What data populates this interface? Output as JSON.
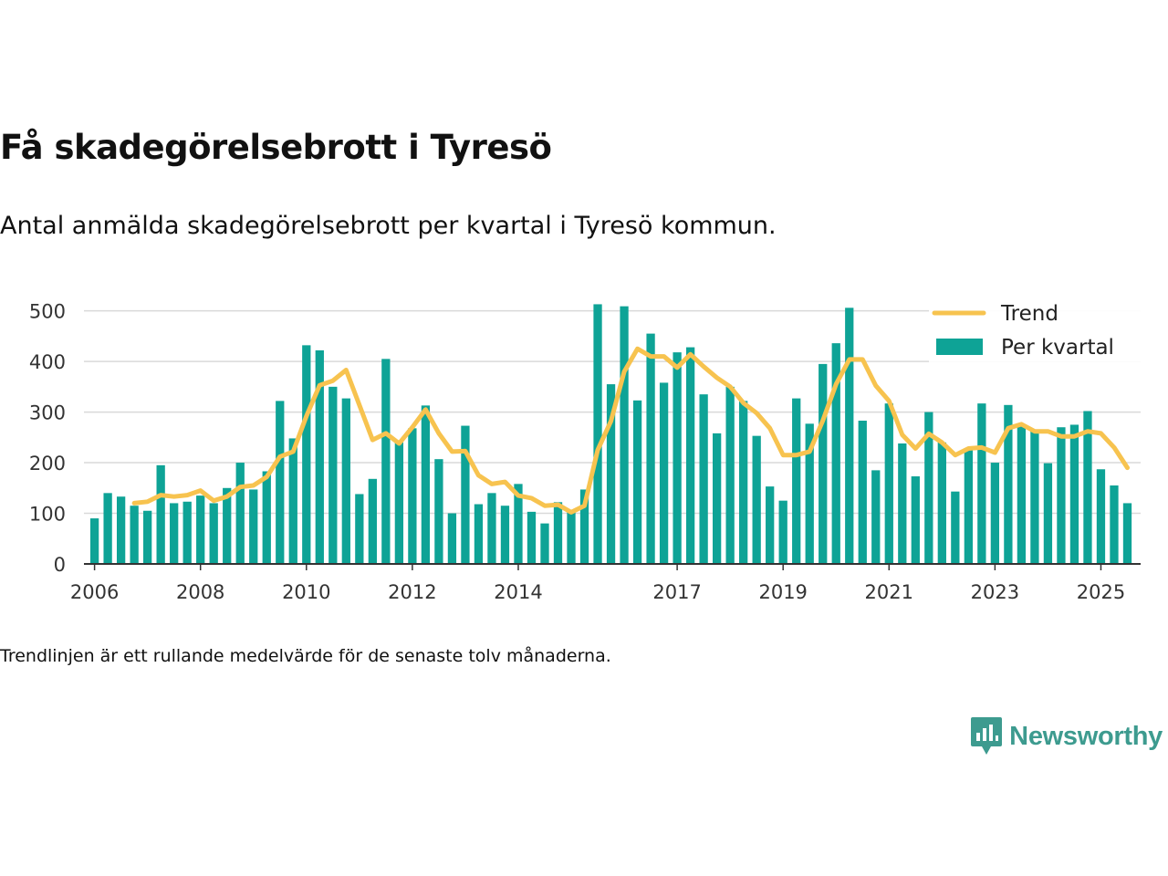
{
  "header": {
    "title": "Få skadegörelsebrott i Tyresö",
    "subtitle": "Antal anmälda skadegörelsebrott per kvartal i Tyresö kommun."
  },
  "footer": {
    "note": "Trendlinjen är ett rullande medelvärde för de senaste tolv månaderna.",
    "brand": "Newsworthy"
  },
  "colors": {
    "bars": "#0ea396",
    "trend": "#f7c34f",
    "grid": "#d9d9d9",
    "axis": "#333333",
    "brand": "#3d9b8f"
  },
  "chart_data": {
    "type": "bar",
    "title": "Få skadegörelsebrott i Tyresö",
    "xlabel": "",
    "ylabel": "",
    "ylim": [
      0,
      530
    ],
    "xlim": [
      2005.8,
      2025.75
    ],
    "yticks": [
      0,
      100,
      200,
      300,
      400,
      500
    ],
    "xticks": [
      {
        "x": 2006,
        "label": "2006"
      },
      {
        "x": 2008,
        "label": "2008"
      },
      {
        "x": 2010,
        "label": "2010"
      },
      {
        "x": 2012,
        "label": "2012"
      },
      {
        "x": 2014,
        "label": "2014"
      },
      {
        "x": 2017,
        "label": "2017"
      },
      {
        "x": 2019,
        "label": "2019"
      },
      {
        "x": 2021,
        "label": "2021"
      },
      {
        "x": 2023,
        "label": "2023"
      },
      {
        "x": 2025,
        "label": "2025"
      }
    ],
    "grid": true,
    "legend": "top-right",
    "series": [
      {
        "name": "Per kvartal",
        "type": "bar",
        "x": [
          2006.0,
          2006.25,
          2006.5,
          2006.75,
          2007.0,
          2007.25,
          2007.5,
          2007.75,
          2008.0,
          2008.25,
          2008.5,
          2008.75,
          2009.0,
          2009.25,
          2009.5,
          2009.75,
          2010.0,
          2010.25,
          2010.5,
          2010.75,
          2011.0,
          2011.25,
          2011.5,
          2011.75,
          2012.0,
          2012.25,
          2012.5,
          2012.75,
          2013.0,
          2013.25,
          2013.5,
          2013.75,
          2014.0,
          2014.25,
          2014.5,
          2014.75,
          2015.0,
          2015.25,
          2015.5,
          2015.75,
          2016.0,
          2016.25,
          2016.5,
          2016.75,
          2017.0,
          2017.25,
          2017.5,
          2017.75,
          2018.0,
          2018.25,
          2018.5,
          2018.75,
          2019.0,
          2019.25,
          2019.5,
          2019.75,
          2020.0,
          2020.25,
          2020.5,
          2020.75,
          2021.0,
          2021.25,
          2021.5,
          2021.75,
          2022.0,
          2022.25,
          2022.5,
          2022.75,
          2023.0,
          2023.25,
          2023.5,
          2023.75,
          2024.0,
          2024.25,
          2024.5,
          2024.75,
          2025.0,
          2025.25,
          2025.5
        ],
        "values": [
          90,
          140,
          133,
          115,
          105,
          195,
          120,
          123,
          135,
          120,
          150,
          200,
          147,
          183,
          322,
          248,
          432,
          422,
          350,
          327,
          138,
          168,
          405,
          240,
          268,
          313,
          207,
          100,
          273,
          118,
          140,
          115,
          158,
          103,
          80,
          122,
          105,
          147,
          513,
          355,
          509,
          323,
          455,
          358,
          418,
          428,
          335,
          258,
          350,
          322,
          253,
          153,
          125,
          327,
          277,
          395,
          436,
          506,
          283,
          185,
          317,
          238,
          173,
          300,
          240,
          143,
          226,
          317,
          200,
          314,
          273,
          262,
          199,
          270,
          275,
          302,
          187,
          155,
          120
        ]
      },
      {
        "name": "Trend",
        "type": "line",
        "x": [
          2006.75,
          2007.0,
          2007.25,
          2007.5,
          2007.75,
          2008.0,
          2008.25,
          2008.5,
          2008.75,
          2009.0,
          2009.25,
          2009.5,
          2009.75,
          2010.0,
          2010.25,
          2010.5,
          2010.75,
          2011.0,
          2011.25,
          2011.5,
          2011.75,
          2012.0,
          2012.25,
          2012.5,
          2012.75,
          2013.0,
          2013.25,
          2013.5,
          2013.75,
          2014.0,
          2014.25,
          2014.5,
          2014.75,
          2015.0,
          2015.25,
          2015.5,
          2015.75,
          2016.0,
          2016.25,
          2016.5,
          2016.75,
          2017.0,
          2017.25,
          2017.5,
          2017.75,
          2018.0,
          2018.25,
          2018.5,
          2018.75,
          2019.0,
          2019.25,
          2019.5,
          2019.75,
          2020.0,
          2020.25,
          2020.5,
          2020.75,
          2021.0,
          2021.25,
          2021.5,
          2021.75,
          2022.0,
          2022.25,
          2022.5,
          2022.75,
          2023.0,
          2023.25,
          2023.5,
          2023.75,
          2024.0,
          2024.25,
          2024.5,
          2024.75,
          2025.0,
          2025.25,
          2025.5
        ],
        "values": [
          120,
          123,
          136,
          133,
          136,
          145,
          125,
          133,
          152,
          155,
          172,
          212,
          222,
          292,
          353,
          362,
          383,
          314,
          245,
          258,
          238,
          270,
          305,
          258,
          222,
          223,
          175,
          158,
          162,
          135,
          130,
          115,
          117,
          102,
          115,
          225,
          282,
          380,
          425,
          410,
          410,
          388,
          414,
          390,
          368,
          350,
          318,
          298,
          268,
          215,
          215,
          222,
          283,
          355,
          404,
          404,
          352,
          322,
          255,
          228,
          257,
          240,
          215,
          228,
          230,
          220,
          268,
          276,
          262,
          262,
          252,
          252,
          262,
          258,
          230,
          190
        ]
      }
    ]
  }
}
